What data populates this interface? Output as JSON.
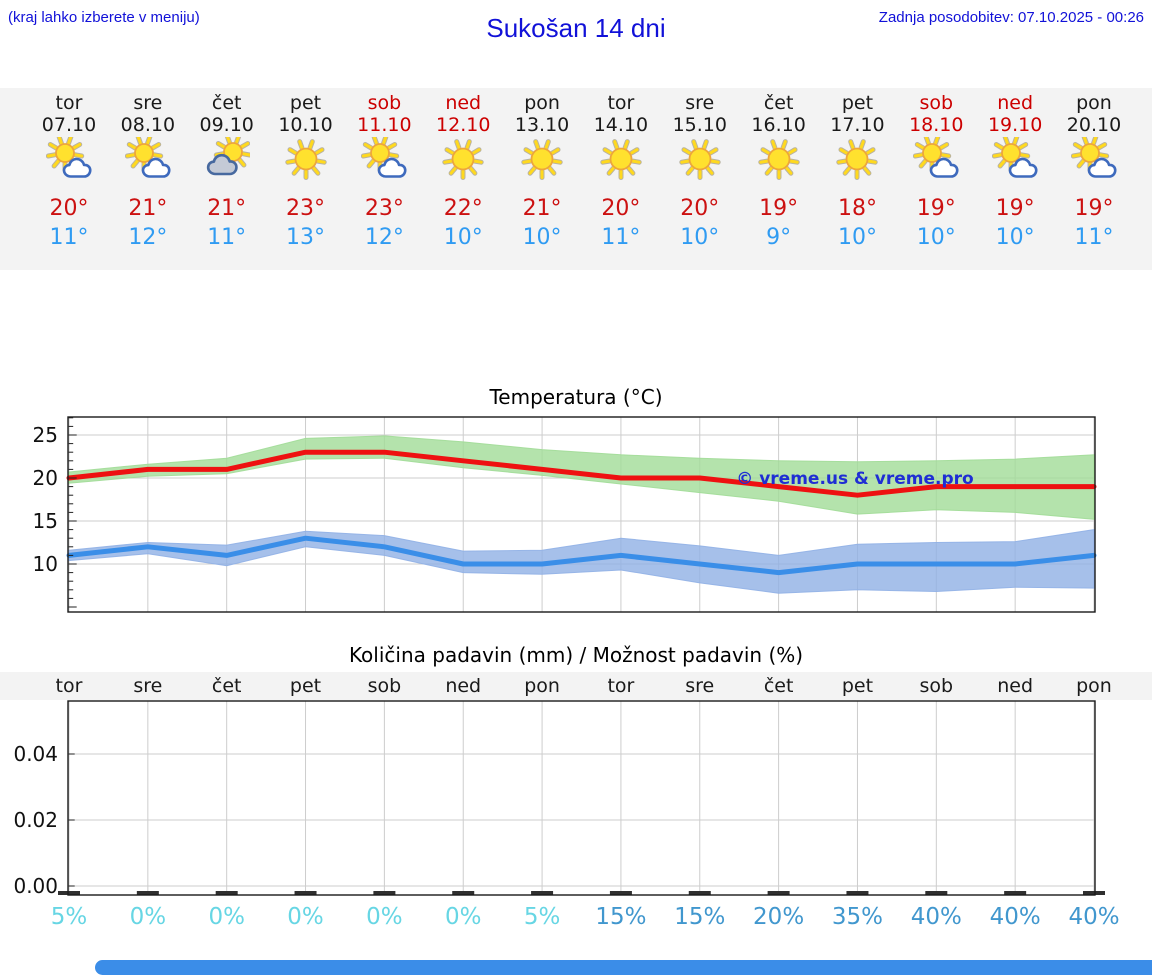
{
  "header": {
    "hint": "(kraj lahko izberete v meniju)",
    "title": "Sukošan 14 dni",
    "last_update": "Zadnja posodobitev: 07.10.2025 - 00:26"
  },
  "forecast": {
    "days": [
      {
        "day": "tor",
        "date": "07.10",
        "weekend": false,
        "icon": "sun-cloud",
        "high": "20°",
        "low": "11°"
      },
      {
        "day": "sre",
        "date": "08.10",
        "weekend": false,
        "icon": "sun-cloud",
        "high": "21°",
        "low": "12°"
      },
      {
        "day": "čet",
        "date": "09.10",
        "weekend": false,
        "icon": "cloud-sun",
        "high": "21°",
        "low": "11°"
      },
      {
        "day": "pet",
        "date": "10.10",
        "weekend": false,
        "icon": "sun",
        "high": "23°",
        "low": "13°"
      },
      {
        "day": "sob",
        "date": "11.10",
        "weekend": true,
        "icon": "sun-cloud",
        "high": "23°",
        "low": "12°"
      },
      {
        "day": "ned",
        "date": "12.10",
        "weekend": true,
        "icon": "sun",
        "high": "22°",
        "low": "10°"
      },
      {
        "day": "pon",
        "date": "13.10",
        "weekend": false,
        "icon": "sun",
        "high": "21°",
        "low": "10°"
      },
      {
        "day": "tor",
        "date": "14.10",
        "weekend": false,
        "icon": "sun",
        "high": "20°",
        "low": "11°"
      },
      {
        "day": "sre",
        "date": "15.10",
        "weekend": false,
        "icon": "sun",
        "high": "20°",
        "low": "10°"
      },
      {
        "day": "čet",
        "date": "16.10",
        "weekend": false,
        "icon": "sun",
        "high": "19°",
        "low": "9°"
      },
      {
        "day": "pet",
        "date": "17.10",
        "weekend": false,
        "icon": "sun",
        "high": "18°",
        "low": "10°"
      },
      {
        "day": "sob",
        "date": "18.10",
        "weekend": true,
        "icon": "sun-cloud",
        "high": "19°",
        "low": "10°"
      },
      {
        "day": "ned",
        "date": "19.10",
        "weekend": true,
        "icon": "sun-cloud",
        "high": "19°",
        "low": "10°"
      },
      {
        "day": "pon",
        "date": "20.10",
        "weekend": false,
        "icon": "sun-cloud",
        "high": "19°",
        "low": "11°"
      }
    ]
  },
  "chart_data": [
    {
      "type": "line",
      "title": "Temperatura (°C)",
      "categories": [
        "tor",
        "sre",
        "čet",
        "pet",
        "sob",
        "ned",
        "pon",
        "tor",
        "sre",
        "čet",
        "pet",
        "sob",
        "ned",
        "pon"
      ],
      "yticks": [
        10,
        15,
        20,
        25
      ],
      "ylim": [
        4.4,
        27.1
      ],
      "grid": true,
      "legend_position": "none",
      "watermark": "© vreme.us & vreme.pro",
      "series": [
        {
          "name": "max-temperature",
          "color": "#ee1111",
          "band_color": "#a1dc97",
          "values": [
            20,
            21,
            21,
            23,
            23,
            22,
            21,
            20,
            20,
            19,
            18,
            19,
            19,
            19
          ],
          "band_high": [
            20.7,
            21.6,
            22.3,
            24.6,
            24.9,
            24.2,
            23.3,
            22.7,
            22.3,
            22.0,
            21.9,
            22.0,
            22.2,
            22.7
          ],
          "band_low": [
            19.4,
            20.2,
            20.5,
            22.2,
            22.3,
            21.2,
            20.3,
            19.3,
            18.3,
            17.3,
            15.8,
            16.3,
            16.0,
            15.2
          ]
        },
        {
          "name": "min-temperature",
          "color": "#3a8ee8",
          "band_color": "#90b0e5",
          "values": [
            11,
            12,
            11,
            13,
            12,
            10,
            10,
            11,
            10,
            9,
            10,
            10,
            10,
            11
          ],
          "band_high": [
            11.6,
            12.5,
            12.2,
            13.8,
            13.3,
            11.5,
            11.6,
            13.0,
            12.1,
            11.0,
            12.3,
            12.5,
            12.6,
            14.0
          ],
          "band_low": [
            10.4,
            11.2,
            9.8,
            12.0,
            11.0,
            9.0,
            8.8,
            9.3,
            7.8,
            6.6,
            7.0,
            6.8,
            7.3,
            7.2
          ]
        }
      ]
    },
    {
      "type": "bar",
      "title": "Količina padavin (mm) / Možnost padavin (%)",
      "categories": [
        "tor",
        "sre",
        "čet",
        "pet",
        "sob",
        "ned",
        "pon",
        "tor",
        "sre",
        "čet",
        "pet",
        "sob",
        "ned",
        "pon"
      ],
      "yticks": [
        "0.00",
        "0.02",
        "0.04"
      ],
      "ylim": [
        0,
        0.056
      ],
      "grid": true,
      "values": [
        0,
        0,
        0,
        0,
        0,
        0,
        0,
        0,
        0,
        0,
        0,
        0,
        0,
        0
      ],
      "percent_labels": [
        "5%",
        "0%",
        "0%",
        "0%",
        "0%",
        "0%",
        "5%",
        "15%",
        "15%",
        "20%",
        "35%",
        "40%",
        "40%",
        "40%"
      ],
      "percent_tones": [
        "low",
        "low",
        "low",
        "low",
        "low",
        "low",
        "low",
        "high",
        "high",
        "high",
        "high",
        "high",
        "high",
        "high"
      ]
    }
  ],
  "colors": {
    "header_blue": "#1111d8",
    "weekend_red": "#cc0000",
    "high_red": "#cc1111",
    "low_blue": "#2f9bf2",
    "grid_gray": "#cdcdcd",
    "band_bg": "#f3f3f3",
    "percent_low": "#67d6e4",
    "percent_high": "#4197ce",
    "watermark_blue": "#1f2ed4",
    "scrollbar_blue": "#3b8de8"
  }
}
